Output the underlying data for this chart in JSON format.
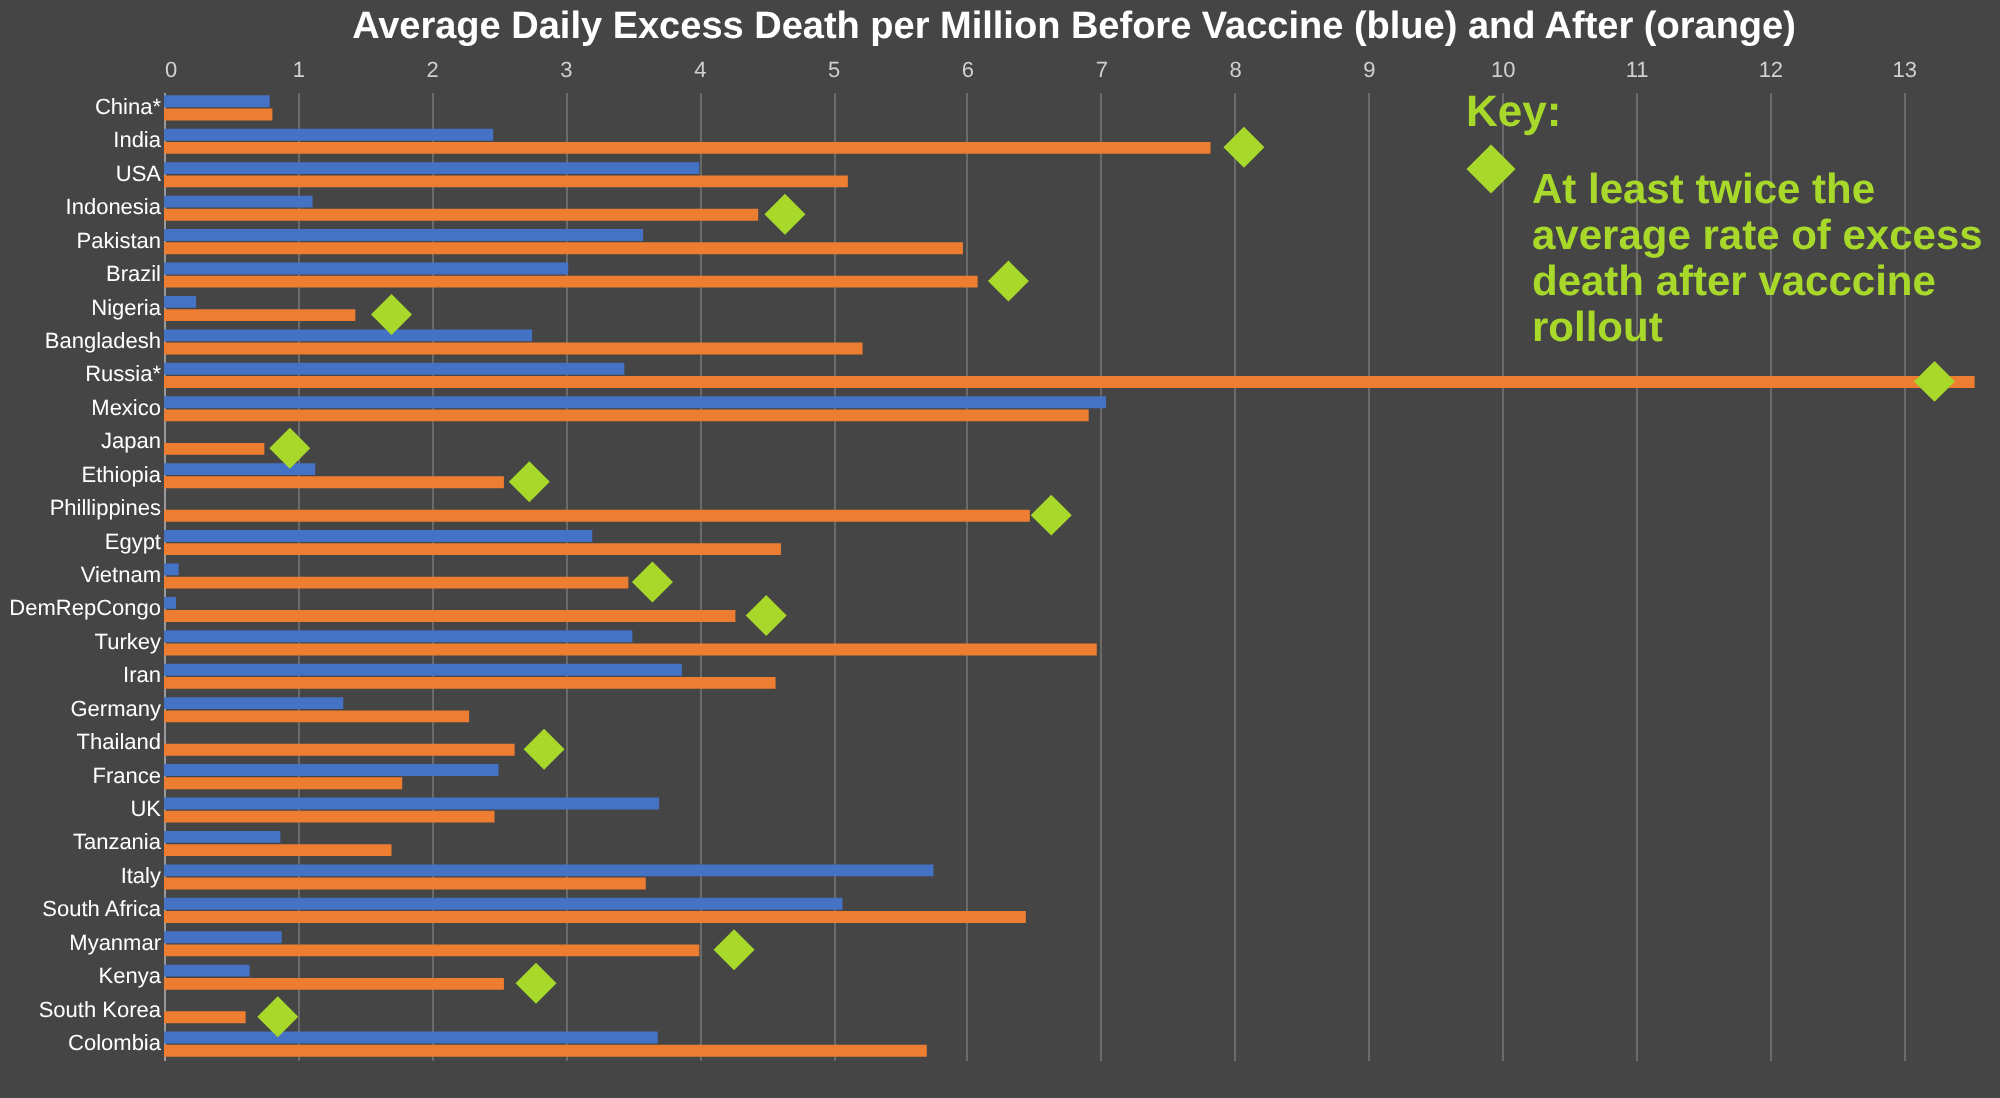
{
  "chart_data": {
    "type": "bar",
    "orientation": "horizontal",
    "title": "Average Daily Excess Death per Million Before Vaccine (blue) and After (orange)",
    "categories": [
      "China*",
      "India",
      "USA",
      "Indonesia",
      "Pakistan",
      "Brazil",
      "Nigeria",
      "Bangladesh",
      "Russia*",
      "Mexico",
      "Japan",
      "Ethiopia",
      "Phillippines",
      "Egypt",
      "Vietnam",
      "DemRepCongo",
      "Turkey",
      "Iran",
      "Germany",
      "Thailand",
      "France",
      "UK",
      "Tanzania",
      "Italy",
      "South Africa",
      "Myanmar",
      "Kenya",
      "South Korea",
      "Colombia"
    ],
    "series": [
      {
        "color": "#4472c4",
        "values": [
          0.79,
          2.46,
          4.0,
          1.11,
          3.58,
          3.02,
          0.24,
          2.75,
          3.44,
          7.04,
          0,
          1.13,
          0,
          3.2,
          0.11,
          0.09,
          3.5,
          3.87,
          1.34,
          0,
          2.5,
          3.7,
          0.87,
          5.75,
          5.07,
          0.88,
          0.64,
          0,
          3.69
        ]
      },
      {
        "color": "#ed7d31",
        "values": [
          0.81,
          7.82,
          5.11,
          4.44,
          5.97,
          6.08,
          1.43,
          5.22,
          13.53,
          6.91,
          0.75,
          2.54,
          6.47,
          4.61,
          3.47,
          4.27,
          6.97,
          4.57,
          2.28,
          2.62,
          1.78,
          2.47,
          1.7,
          3.6,
          6.44,
          4.0,
          2.54,
          0.61,
          5.7
        ]
      },
      {
        "type": "scatter",
        "name": "At least twice the average rate of excess death after vacccine rollout",
        "color": "#a8d92a",
        "x": [
          "India",
          "Indonesia",
          "Brazil",
          "Nigeria",
          "Russia*",
          "Japan",
          "Ethiopia",
          "Phillippines",
          "Vietnam",
          "DemRepCongo",
          "Thailand",
          "Myanmar",
          "Kenya",
          "South Korea"
        ],
        "values": [
          8.07,
          4.64,
          6.31,
          1.7,
          13.23,
          0.94,
          2.73,
          6.63,
          3.65,
          4.5,
          2.84,
          4.26,
          2.78,
          0.85
        ]
      }
    ],
    "legend_title": "Key:",
    "legend": "top right",
    "marker": "diamond",
    "xlim": [
      0,
      13.6
    ],
    "xticks": [
      0,
      1,
      2,
      3,
      4,
      5,
      6,
      7,
      8,
      9,
      10,
      11,
      12,
      13
    ],
    "grid": "x"
  }
}
